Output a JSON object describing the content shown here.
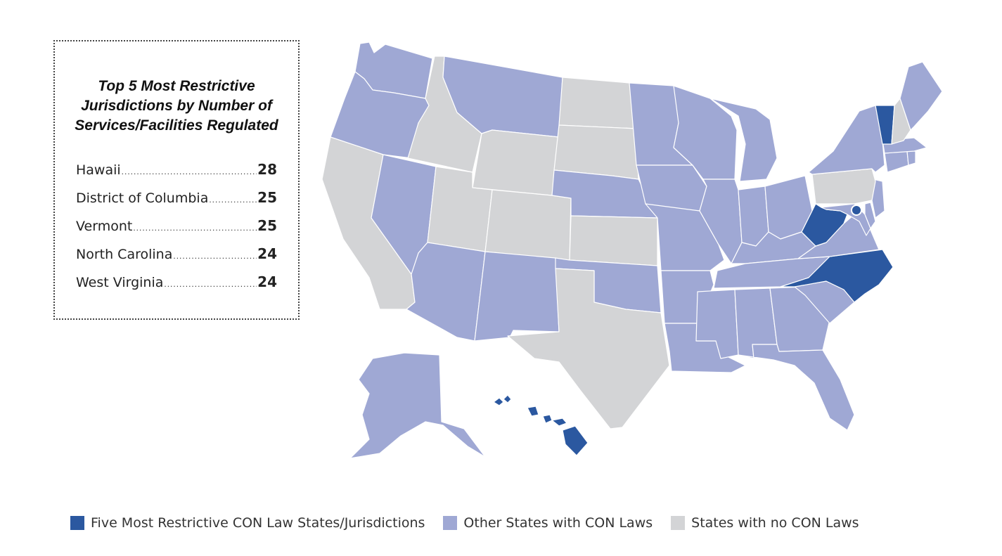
{
  "colors": {
    "most_restrictive": "#2b58a0",
    "con_law": "#9fa8d4",
    "no_con": "#d3d4d6",
    "border": "#ffffff"
  },
  "top_box": {
    "title": "Top 5 Most Restrictive Jurisdictions by Number of Services/Facilities Regulated",
    "items": [
      {
        "name": "Hawaii",
        "value": "28"
      },
      {
        "name": "District of Columbia",
        "value": "25"
      },
      {
        "name": "Vermont",
        "value": "25"
      },
      {
        "name": "North Carolina",
        "value": "24"
      },
      {
        "name": "West Virginia",
        "value": "24"
      }
    ]
  },
  "legend": [
    {
      "label": "Five Most Restrictive CON Law States/Jurisdictions",
      "category": "most_restrictive"
    },
    {
      "label": "Other States with CON Laws",
      "category": "con_law"
    },
    {
      "label": "States with no CON Laws",
      "category": "no_con"
    }
  ],
  "map": {
    "most_restrictive": [
      "Hawaii",
      "District of Columbia",
      "Vermont",
      "North Carolina",
      "West Virginia"
    ],
    "no_con": [
      "Idaho",
      "California",
      "Utah",
      "Wyoming",
      "Colorado",
      "North Dakota",
      "South Dakota",
      "Kansas",
      "Texas",
      "Pennsylvania",
      "New Hampshire"
    ]
  }
}
